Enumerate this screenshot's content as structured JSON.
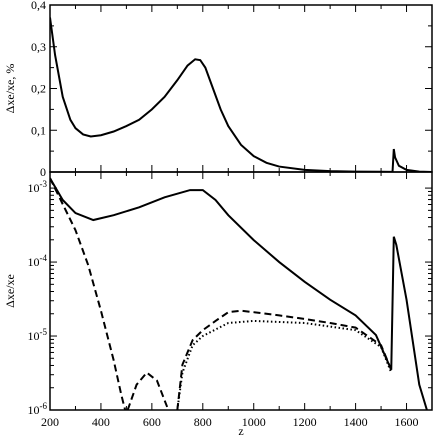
{
  "chart_data": [
    {
      "type": "line",
      "ylabel": "Δxe/xe, %",
      "xlim": [
        200,
        1700
      ],
      "xticks": [
        200,
        400,
        600,
        800,
        1000,
        1200,
        1400,
        1600
      ],
      "ylim": [
        0,
        0.4
      ],
      "yticks": [
        0,
        {
          "value": 0.1,
          "label": "0,1"
        },
        {
          "value": 0.2,
          "label": "0,2"
        },
        {
          "value": 0.3,
          "label": "0,3"
        },
        {
          "value": 0.4,
          "label": "0,4"
        }
      ],
      "log": false,
      "series": [
        {
          "color": "#000000",
          "dash": "solid",
          "x": [
            200,
            220,
            250,
            280,
            300,
            330,
            360,
            400,
            450,
            500,
            550,
            600,
            650,
            700,
            740,
            770,
            790,
            810,
            840,
            870,
            900,
            950,
            1000,
            1050,
            1100,
            1200,
            1300,
            1400,
            1500,
            1545,
            1550,
            1555,
            1570,
            1600,
            1650,
            1700
          ],
          "values": [
            0.37,
            0.28,
            0.18,
            0.125,
            0.105,
            0.09,
            0.085,
            0.088,
            0.097,
            0.11,
            0.125,
            0.15,
            0.18,
            0.22,
            0.255,
            0.27,
            0.268,
            0.25,
            0.2,
            0.15,
            0.11,
            0.065,
            0.038,
            0.022,
            0.013,
            0.005,
            0.002,
            0.001,
            0.0005,
            0.0003,
            0.055,
            0.035,
            0.015,
            0.005,
            0.001,
            0
          ]
        }
      ]
    },
    {
      "type": "line",
      "ylabel": "Δxe/xe",
      "xlabel": "z",
      "xlim": [
        200,
        1700
      ],
      "xticks": [
        200,
        400,
        600,
        800,
        1000,
        1200,
        1400,
        1600
      ],
      "ylim": [
        1e-06,
        0.00165
      ],
      "yticks": [
        {
          "value": 1e-06,
          "label": "10",
          "exponent": "-6"
        },
        {
          "value": 1e-05,
          "label": "10",
          "exponent": "-5"
        },
        {
          "value": 0.0001,
          "label": "10",
          "exponent": "-4"
        },
        {
          "value": 0.001,
          "label": "10",
          "exponent": "-3"
        }
      ],
      "log": true,
      "series": [
        {
          "color": "#000000",
          "dash": "solid",
          "x": [
            200,
            250,
            300,
            370,
            450,
            550,
            650,
            750,
            800,
            850,
            900,
            1000,
            1100,
            1200,
            1300,
            1400,
            1480,
            1540,
            1550,
            1560,
            1600,
            1650,
            1680
          ],
          "values": [
            0.00136,
            0.00069,
            0.00046,
            0.00037,
            0.00043,
            0.00055,
            0.00075,
            0.00094,
            0.00094,
            0.00069,
            0.00043,
            0.000198,
            0.0001,
            5.4e-05,
            3.1e-05,
            1.9e-05,
            1.03e-05,
            3.5e-06,
            0.00022,
            0.00017,
            3.1e-05,
            2.2e-06,
            1e-06
          ]
        },
        {
          "color": "#000000",
          "dash": "dashed",
          "x": [
            200,
            300,
            350,
            400,
            450,
            480,
            495,
            500,
            505,
            540,
            580,
            620,
            660,
            670,
            690,
            700,
            720,
            760,
            800,
            850,
            900,
            950,
            1000,
            1100,
            1200,
            1300,
            1400,
            1500,
            1540
          ],
          "values": [
            0.00136,
            0.00027,
            9.1e-05,
            2.2e-05,
            4.7e-06,
            1.6e-06,
            1e-06,
            null,
            1e-06,
            2.2e-06,
            3.2e-06,
            2.5e-06,
            1.1e-06,
            null,
            null,
            1e-06,
            4.1e-06,
            8.8e-06,
            1.2e-05,
            1.6e-05,
            2.1e-05,
            2.2e-05,
            2.1e-05,
            1.9e-05,
            1.7e-05,
            1.5e-05,
            1.3e-05,
            7.5e-06,
            3.5e-06
          ]
        },
        {
          "color": "#000000",
          "dash": "dotted",
          "x": [
            700,
            720,
            760,
            800,
            900,
            1000,
            1200,
            1400,
            1500,
            1540
          ],
          "values": [
            1e-06,
            3.2e-06,
            7.5e-06,
            1e-05,
            1.5e-05,
            1.6e-05,
            1.5e-05,
            1.2e-05,
            7.1e-06,
            3.2e-06
          ]
        }
      ]
    }
  ]
}
